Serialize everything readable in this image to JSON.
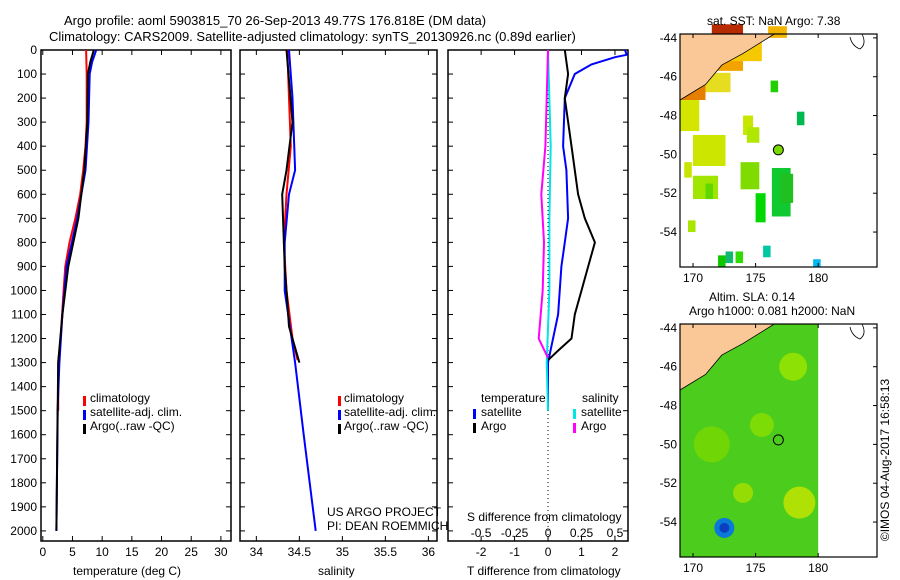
{
  "title": {
    "line1": "Argo profile: aoml 5903815_70 26-Sep-2013 49.77S 176.818E (DM data)",
    "line2": "Climatology: CARS2009. Satellite-adjusted climatology: synTS_20130926.nc (0.89d earlier)"
  },
  "credit": "©IMOS 04-Aug-2017 16:58:13",
  "project": {
    "line1": "US ARGO PROJECT",
    "line2": "PI: DEAN ROEMMICH"
  },
  "colors": {
    "climatology": "#ff0000",
    "satellite": "#0000ff",
    "argo": "#000000",
    "sal_sat": "#00e5e5",
    "sal_argo": "#ff00ff"
  },
  "chart_data": [
    {
      "type": "line",
      "name": "temperature",
      "xlabel": "temperature (deg C)",
      "xlim": [
        -0.3,
        31.7
      ],
      "ylim": [
        0,
        2108
      ],
      "xticks": [
        "0",
        "5",
        "10",
        "15",
        "20",
        "25",
        "30"
      ],
      "xtick_values": [
        0,
        5,
        10,
        15,
        20,
        25,
        30
      ],
      "yticks": [
        "0",
        "100",
        "200",
        "300",
        "400",
        "500",
        "600",
        "700",
        "800",
        "900",
        "1000",
        "1100",
        "1200",
        "1300",
        "1400",
        "1500",
        "1600",
        "1700",
        "1800",
        "1900",
        "2000"
      ],
      "legend": [
        "climatology",
        "satellite-adj. clim.",
        "Argo(..raw -QC)"
      ],
      "series": [
        {
          "name": "climatology",
          "color": "#ff0000",
          "depth": [
            0,
            100,
            300,
            400,
            500,
            600,
            700,
            800,
            900,
            1000,
            1200,
            1300,
            1500
          ],
          "values": [
            7.3,
            7.4,
            7.4,
            7.2,
            6.8,
            6.3,
            5.5,
            4.5,
            3.8,
            3.5,
            3.0,
            2.6,
            2.6
          ]
        },
        {
          "name": "satellite-adj. clim.",
          "color": "#0000ff",
          "depth": [
            0,
            50,
            100,
            300,
            500,
            700,
            900,
            1100,
            1300,
            1500,
            2000
          ],
          "values": [
            9.0,
            8.3,
            7.9,
            7.7,
            7.2,
            5.8,
            4.0,
            3.3,
            2.8,
            2.5,
            2.3
          ]
        },
        {
          "name": "Argo",
          "color": "#000000",
          "depth": [
            0,
            50,
            100,
            300,
            500,
            700,
            900,
            1100,
            1300,
            2000
          ],
          "values": [
            8.6,
            8.0,
            7.6,
            7.5,
            7.0,
            6.0,
            4.3,
            3.3,
            2.6,
            2.3
          ]
        }
      ]
    },
    {
      "type": "line",
      "name": "salinity",
      "xlabel": "salinity",
      "xlim": [
        33.81,
        36.1
      ],
      "ylim": [
        0,
        2108
      ],
      "xticks": [
        "34",
        "34.5",
        "35",
        "35.5",
        "36"
      ],
      "xtick_values": [
        34,
        34.5,
        35,
        35.5,
        36
      ],
      "legend": [
        "climatology",
        "satellite-adj. clim.",
        "Argo(..raw -QC)"
      ],
      "series": [
        {
          "name": "climatology",
          "color": "#ff0000",
          "depth": [
            0,
            200,
            400,
            600,
            800,
            1000,
            1200,
            1290
          ],
          "values": [
            34.36,
            34.38,
            34.4,
            34.35,
            34.32,
            34.35,
            34.42,
            34.48
          ]
        },
        {
          "name": "satellite-adj. clim.",
          "color": "#0000ff",
          "depth": [
            0,
            200,
            500,
            600,
            800,
            1000,
            1300,
            1600,
            2000
          ],
          "values": [
            34.38,
            34.42,
            34.45,
            34.38,
            34.33,
            34.33,
            34.45,
            34.55,
            34.69
          ]
        },
        {
          "name": "Argo",
          "color": "#000000",
          "depth": [
            0,
            300,
            500,
            600,
            900,
            1000,
            1150,
            1300
          ],
          "values": [
            34.35,
            34.42,
            34.35,
            34.3,
            34.33,
            34.35,
            34.38,
            34.5
          ]
        }
      ]
    },
    {
      "type": "line",
      "name": "difference",
      "xlabel": "T difference from climatology",
      "x2label": "S difference from climatology",
      "xlim": [
        -2.99,
        2.39
      ],
      "ylim": [
        0,
        2108
      ],
      "xticks": [
        "-2",
        "-1",
        "0",
        "1",
        "2"
      ],
      "xtick_values": [
        -2,
        -1,
        0,
        1,
        2
      ],
      "x2ticks": [
        "-0.5",
        "-0.25",
        "0",
        "0.25",
        "0.5"
      ],
      "x2tick_values": [
        -0.5,
        -0.25,
        0,
        0.25,
        0.5
      ],
      "legend": {
        "temperature": "temperature",
        "salinity": "salinity",
        "satellite": "satellite",
        "argo": "Argo"
      },
      "series": [
        {
          "name": "T satellite",
          "color": "#0000ff",
          "var": "T",
          "depth": [
            0,
            20,
            30,
            60,
            100,
            200,
            400,
            500,
            700,
            800,
            900,
            1100,
            1300,
            1500
          ],
          "values": [
            2.3,
            2.35,
            2.0,
            1.3,
            0.8,
            0.5,
            0.45,
            0.55,
            0.6,
            0.5,
            0.4,
            0.3,
            0.0,
            0.0
          ]
        },
        {
          "name": "T Argo",
          "color": "#000000",
          "var": "T",
          "depth": [
            0,
            100,
            200,
            400,
            600,
            700,
            800,
            900,
            1000,
            1100,
            1200,
            1250,
            1290
          ],
          "values": [
            0.5,
            0.6,
            0.5,
            0.7,
            0.9,
            1.1,
            1.4,
            1.2,
            1.0,
            0.8,
            0.7,
            0.3,
            0.0
          ]
        },
        {
          "name": "S satellite",
          "color": "#00e5e5",
          "var": "S",
          "depth": [
            0,
            400,
            700,
            1000,
            1300,
            1500
          ],
          "values": [
            0.0,
            0.02,
            0.01,
            0.01,
            -0.01,
            0.0
          ]
        },
        {
          "name": "S Argo",
          "color": "#ff00ff",
          "var": "S",
          "depth": [
            0,
            400,
            600,
            800,
            1000,
            1200,
            1280
          ],
          "values": [
            0.0,
            -0.02,
            -0.05,
            -0.03,
            -0.04,
            -0.07,
            0.0
          ]
        }
      ]
    },
    {
      "type": "heatmap",
      "name": "sst-map",
      "title": "sat. SST: NaN Argo: 7.38",
      "lonlim": [
        168.96,
        184.7
      ],
      "latlim": [
        -55.8,
        -43.8
      ],
      "xticks": [
        "170",
        "175",
        "180"
      ],
      "xtick_values": [
        170,
        175,
        180
      ],
      "yticks": [
        "-44",
        "-46",
        "-48",
        "-50",
        "-52",
        "-54"
      ],
      "ytick_values": [
        -44,
        -46,
        -48,
        -50,
        -52,
        -54
      ],
      "float": [
        176.818,
        -49.77
      ],
      "cells": [
        [
          171.5,
          -44.5,
          2.5,
          1.2,
          "#b82a00"
        ],
        [
          170.5,
          -45.7,
          3.5,
          1.3,
          "#f2a300"
        ],
        [
          172.5,
          -45.2,
          3,
          1.2,
          "#f5c800"
        ],
        [
          169,
          -47.2,
          2,
          1,
          "#e67e00"
        ],
        [
          171,
          -46.8,
          2,
          1,
          "#e6dc20"
        ],
        [
          176,
          -44,
          1.5,
          0.6,
          "#f2b400"
        ],
        [
          169,
          -48.8,
          1.5,
          1.6,
          "#d4e600"
        ],
        [
          170,
          -50.6,
          2.6,
          1.6,
          "#cce600"
        ],
        [
          169.3,
          -51.2,
          0.6,
          0.8,
          "#c8e400"
        ],
        [
          170,
          -52.3,
          2,
          1.2,
          "#a0e600"
        ],
        [
          171,
          -52.3,
          0.6,
          0.8,
          "#60d800"
        ],
        [
          174,
          -49,
          0.8,
          1
        ],
        [
          174.3,
          -49.4,
          1,
          0.8,
          "#b0e600"
        ],
        [
          173.8,
          -51.8,
          1.5,
          1.4,
          "#80dc00"
        ],
        [
          176.2,
          -46.8,
          0.6,
          0.6,
          "#20d000"
        ],
        [
          178.3,
          -48.5,
          0.6,
          0.7,
          "#00b850"
        ],
        [
          176.3,
          -53.2,
          1.5,
          2.5,
          "#10c830"
        ],
        [
          177,
          -52.5,
          1,
          1.5,
          "#20c020"
        ],
        [
          175,
          -53.5,
          0.8,
          1.5,
          "#00d800"
        ],
        [
          169.6,
          -54,
          0.6,
          0.6,
          "#a8e600"
        ],
        [
          172,
          -55.8,
          0.6,
          0.6,
          "#10c800"
        ],
        [
          172.6,
          -55.6,
          0.6,
          0.6,
          "#10b870"
        ],
        [
          173.4,
          -55.6,
          0.6,
          0.6,
          "#30dc00"
        ],
        [
          175.6,
          -55.3,
          0.6,
          0.6,
          "#00c8a0"
        ],
        [
          179.6,
          -55.8,
          0.6,
          0.4,
          "#00b8f0"
        ]
      ]
    },
    {
      "type": "heatmap",
      "name": "sla-map",
      "title": "Altim. SLA: 0.14",
      "subtitle": "Argo h1000: 0.081 h2000: NaN",
      "lonlim": [
        168.96,
        184.7
      ],
      "latlim": [
        -55.8,
        -43.8
      ],
      "xticks": [
        "170",
        "175",
        "180"
      ],
      "xtick_values": [
        170,
        175,
        180
      ],
      "yticks": [
        "-44",
        "-46",
        "-48",
        "-50",
        "-52",
        "-54"
      ],
      "ytick_values": [
        -44,
        -46,
        -48,
        -50,
        -52,
        -54
      ],
      "float": [
        176.818,
        -49.77
      ]
    }
  ]
}
